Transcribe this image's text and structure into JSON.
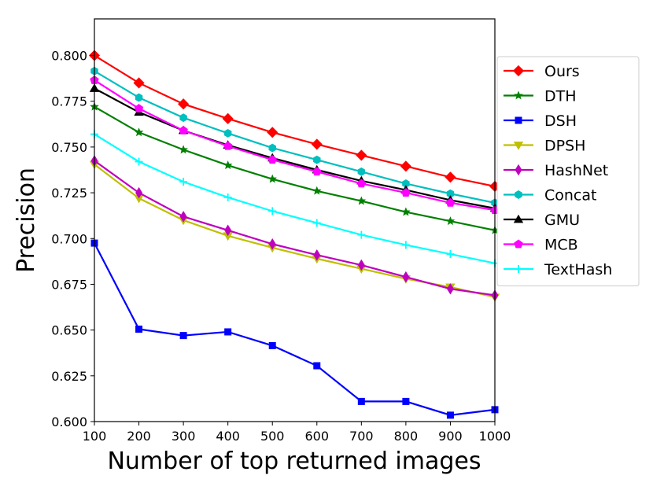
{
  "chart_data": {
    "type": "line",
    "title": "",
    "xlabel": "Number of top returned images",
    "ylabel": "Precision",
    "x": [
      100,
      200,
      300,
      400,
      500,
      600,
      700,
      800,
      900,
      1000
    ],
    "xlim": [
      100,
      1000
    ],
    "ylim": [
      0.6,
      0.82
    ],
    "xticks": [
      "100",
      "200",
      "300",
      "400",
      "500",
      "600",
      "700",
      "800",
      "900",
      "1000"
    ],
    "yticks": [
      "0.600",
      "0.625",
      "0.650",
      "0.675",
      "0.700",
      "0.725",
      "0.750",
      "0.775",
      "0.800"
    ],
    "grid": false,
    "legend_position": "right",
    "series": [
      {
        "name": "Ours",
        "color": "#ff0000",
        "marker": "diamond",
        "values": [
          0.8,
          0.785,
          0.7735,
          0.7655,
          0.758,
          0.7515,
          0.7455,
          0.7395,
          0.7335,
          0.7285
        ]
      },
      {
        "name": "DTH",
        "color": "#008000",
        "marker": "star",
        "values": [
          0.772,
          0.758,
          0.7485,
          0.74,
          0.7325,
          0.726,
          0.7205,
          0.7145,
          0.7095,
          0.7045
        ]
      },
      {
        "name": "DSH",
        "color": "#0000ff",
        "marker": "square",
        "values": [
          0.6975,
          0.6505,
          0.647,
          0.649,
          0.6415,
          0.6305,
          0.611,
          0.611,
          0.6035,
          0.6065
        ]
      },
      {
        "name": "DPSH",
        "color": "#bfbf00",
        "marker": "triangle-down",
        "values": [
          0.7405,
          0.722,
          0.71,
          0.7015,
          0.695,
          0.689,
          0.6835,
          0.678,
          0.6735,
          0.668
        ]
      },
      {
        "name": "HashNet",
        "color": "#bf00bf",
        "marker": "thin-diamond",
        "values": [
          0.7425,
          0.725,
          0.712,
          0.7045,
          0.697,
          0.691,
          0.6855,
          0.679,
          0.6725,
          0.669
        ]
      },
      {
        "name": "Concat",
        "color": "#00bfbf",
        "marker": "hexagon",
        "values": [
          0.7915,
          0.777,
          0.766,
          0.7575,
          0.7495,
          0.743,
          0.7365,
          0.73,
          0.7245,
          0.7195
        ]
      },
      {
        "name": "GMU",
        "color": "#000000",
        "marker": "triangle-up",
        "values": [
          0.782,
          0.769,
          0.759,
          0.751,
          0.744,
          0.7375,
          0.7315,
          0.7265,
          0.721,
          0.7165
        ]
      },
      {
        "name": "MCB",
        "color": "#ff00ff",
        "marker": "pentagon",
        "values": [
          0.7865,
          0.771,
          0.759,
          0.7505,
          0.743,
          0.7365,
          0.73,
          0.725,
          0.7195,
          0.7155
        ]
      },
      {
        "name": "TextHash",
        "color": "#00ffff",
        "marker": "plus",
        "values": [
          0.757,
          0.742,
          0.731,
          0.7225,
          0.715,
          0.7085,
          0.702,
          0.6965,
          0.6915,
          0.6865
        ]
      }
    ]
  }
}
